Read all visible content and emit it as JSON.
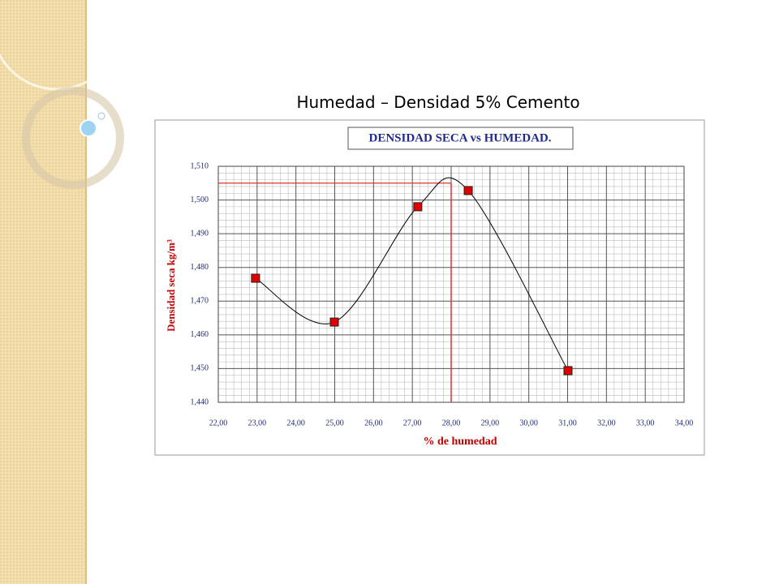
{
  "slide": {
    "title": "Humedad – Densidad 5% Cemento"
  },
  "chart_data": {
    "type": "line",
    "title": "DENSIDAD SECA vs HUMEDAD.",
    "x_label": "% de humedad",
    "y_label": "Densidad seca kg/m³",
    "x": [
      22.96,
      24.99,
      27.14,
      28.44,
      31.01
    ],
    "series": [
      {
        "color": "#e00000",
        "values": [
          1.4768,
          1.4638,
          1.498,
          1.5028,
          1.4494
        ]
      }
    ],
    "reference": {
      "x": 28,
      "y": 1.505,
      "color": "#e03030"
    },
    "xlim": [
      22,
      34
    ],
    "xticks": [
      {
        "value": 22,
        "label": "22,00"
      },
      {
        "value": 23,
        "label": "23,00"
      },
      {
        "value": 24,
        "label": "24,00"
      },
      {
        "value": 25,
        "label": "25,00"
      },
      {
        "value": 26,
        "label": "26,00"
      },
      {
        "value": 27,
        "label": "27,00"
      },
      {
        "value": 28,
        "label": "28,00"
      },
      {
        "value": 29,
        "label": "29,00"
      },
      {
        "value": 30,
        "label": "30,00"
      },
      {
        "value": 31,
        "label": "31,00"
      },
      {
        "value": 32,
        "label": "32,00"
      },
      {
        "value": 33,
        "label": "33,00"
      },
      {
        "value": 34,
        "label": "34,00"
      }
    ],
    "ylim": [
      1.44,
      1.51
    ],
    "yticks": [
      {
        "value": 1.44,
        "label": "1,440"
      },
      {
        "value": 1.45,
        "label": "1,450"
      },
      {
        "value": 1.46,
        "label": "1,460"
      },
      {
        "value": 1.47,
        "label": "1,470"
      },
      {
        "value": 1.48,
        "label": "1,480"
      },
      {
        "value": 1.49,
        "label": "1,490"
      },
      {
        "value": 1.5,
        "label": "1,500"
      },
      {
        "value": 1.51,
        "label": "1,510"
      }
    ],
    "grid": true,
    "minor_divisions": 5,
    "smooth": true
  }
}
